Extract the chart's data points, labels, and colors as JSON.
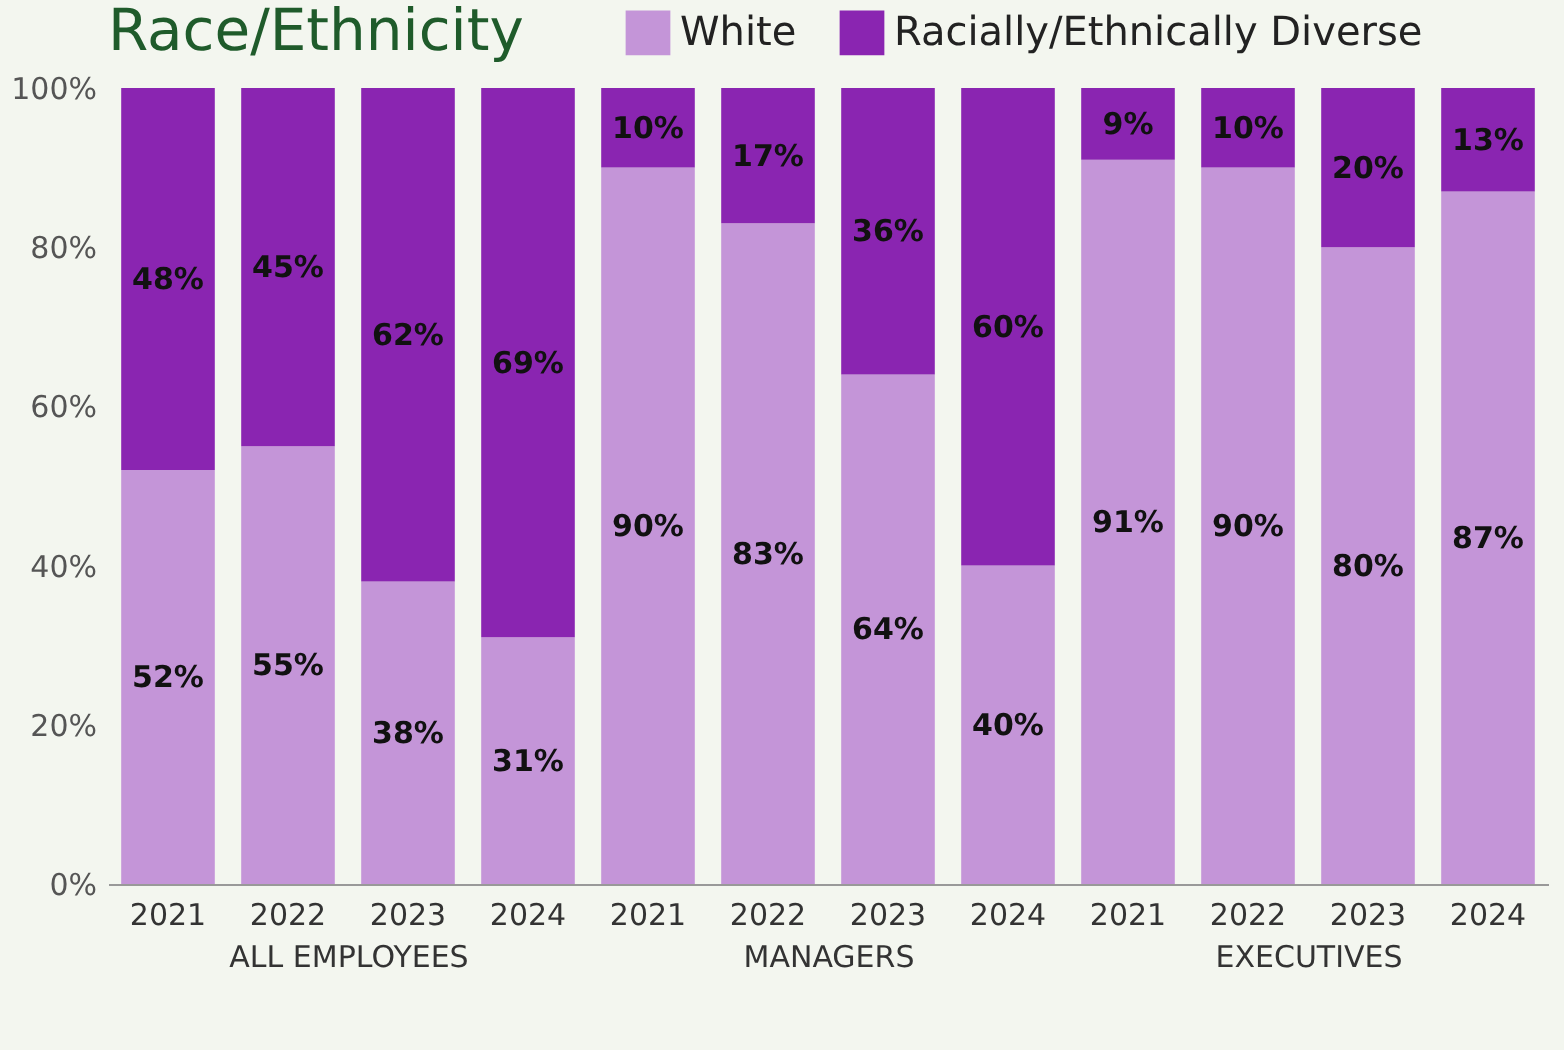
{
  "chart_data": [
    {
      "type": "bar",
      "title": "Race/Ethnicity",
      "xlabel": "ALL EMPLOYEES",
      "categories": [
        "2021",
        "2022",
        "2023",
        "2024"
      ],
      "stacked": true,
      "legend": "top",
      "ylim": [
        0,
        100
      ],
      "yticks": [
        {
          "value": 0,
          "label": "0%"
        },
        {
          "value": 20,
          "label": "20%"
        },
        {
          "value": 40,
          "label": "40%"
        },
        {
          "value": 60,
          "label": "60%"
        },
        {
          "value": 80,
          "label": "80%"
        },
        {
          "value": 100,
          "label": "100%"
        }
      ],
      "series": [
        {
          "name": "White",
          "color": "#c495d8",
          "values": [
            52,
            55,
            38,
            31
          ],
          "value_labels": [
            "52%",
            "55%",
            "38%",
            "31%"
          ]
        },
        {
          "name": "Racially/Ethnically Diverse",
          "color": "#8a25b1",
          "values": [
            48,
            45,
            62,
            69
          ],
          "value_labels": [
            "48%",
            "45%",
            "62%",
            "69%"
          ]
        }
      ]
    },
    {
      "type": "bar",
      "xlabel": "MANAGERS",
      "categories": [
        "2021",
        "2022",
        "2023",
        "2024"
      ],
      "stacked": true,
      "tick_labels": "x",
      "ylim": [
        0,
        100
      ],
      "series": [
        {
          "name": "White",
          "color": "#c495d8",
          "values": [
            90,
            83,
            64,
            40
          ],
          "value_labels": [
            "90%",
            "83%",
            "64%",
            "40%"
          ]
        },
        {
          "name": "Racially/Ethnically Diverse",
          "color": "#8a25b1",
          "values": [
            10,
            17,
            36,
            60
          ],
          "value_labels": [
            "10%",
            "17%",
            "36%",
            "60%"
          ]
        }
      ]
    },
    {
      "type": "bar",
      "xlabel": "EXECUTIVES",
      "categories": [
        "2021",
        "2022",
        "2023",
        "2024"
      ],
      "stacked": true,
      "tick_labels": "x",
      "ylim": [
        0,
        100
      ],
      "series": [
        {
          "name": "White",
          "color": "#c495d8",
          "values": [
            91,
            90,
            80,
            87
          ],
          "value_labels": [
            "91%",
            "90%",
            "80%",
            "87%"
          ]
        },
        {
          "name": "Racially/Ethnically Diverse",
          "color": "#8a25b1",
          "values": [
            9,
            10,
            20,
            13
          ],
          "value_labels": [
            "9%",
            "10%",
            "20%",
            "13%"
          ]
        }
      ]
    }
  ]
}
